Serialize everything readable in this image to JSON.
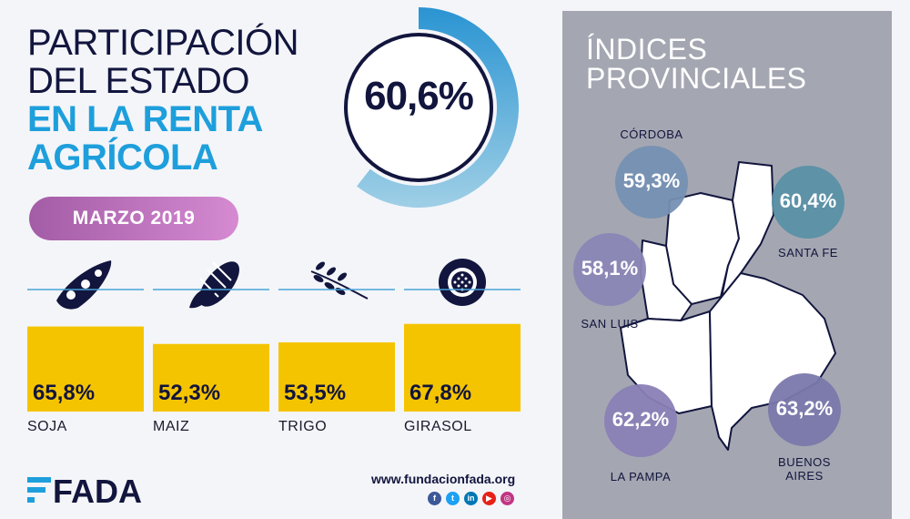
{
  "header": {
    "title_line1": "PARTICIPACIÓN",
    "title_line2": "DEL ESTADO",
    "title_line3": "EN LA RENTA",
    "title_line4": "AGRÍCOLA",
    "headline_value": "60,6%",
    "period": "MARZO 2019"
  },
  "chart_data": [
    {
      "type": "bar",
      "categories": [
        "SOJA",
        "MAIZ",
        "TRIGO",
        "GIRASOL"
      ],
      "values": [
        65.8,
        52.3,
        53.5,
        67.8
      ],
      "value_labels": [
        "65,8%",
        "52,3%",
        "53,5%",
        "67,8%"
      ],
      "icons": [
        "soy-pod-icon",
        "corn-cob-icon",
        "wheat-sprig-icon",
        "sunflower-icon"
      ],
      "bar_color": "#f5c400"
    },
    {
      "type": "map",
      "title_line1": "ÍNDICES",
      "title_line2": "PROVINCIALES",
      "regions": [
        {
          "name": "CÓRDOBA",
          "value": 59.3,
          "label": "59,3%"
        },
        {
          "name": "SANTA FE",
          "value": 60.4,
          "label": "60,4%"
        },
        {
          "name": "SAN LUIS",
          "value": 58.1,
          "label": "58,1%"
        },
        {
          "name": "LA PAMPA",
          "value": 62.2,
          "label": "62,2%"
        },
        {
          "name": "BUENOS AIRES",
          "name_line1": "BUENOS",
          "name_line2": "AIRES",
          "value": 63.2,
          "label": "63,2%"
        }
      ]
    }
  ],
  "footer": {
    "logo": "FADA",
    "website": "www.fundacionfada.org",
    "social_icons": [
      "facebook-icon",
      "twitter-icon",
      "linkedin-icon",
      "youtube-icon",
      "instagram-icon"
    ]
  },
  "colors": {
    "navy": "#12153d",
    "blue": "#1e9fdc",
    "panel": "#a4a7b1"
  }
}
